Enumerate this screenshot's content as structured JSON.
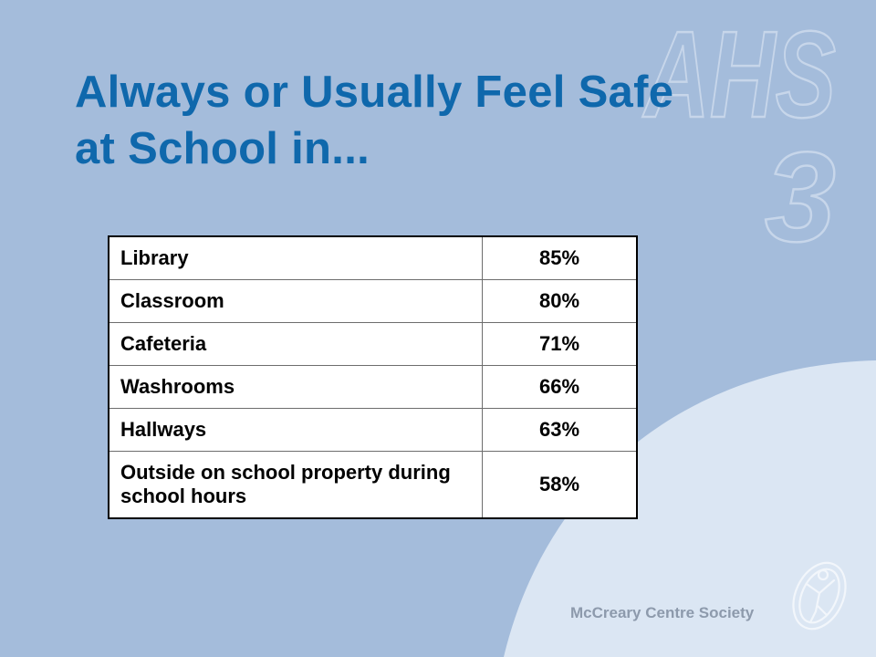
{
  "slide": {
    "title_line1": "Always or Usually Feel Safe",
    "title_line2": "at School in...",
    "watermark_text_1": "AHS",
    "watermark_text_2": "3",
    "footer": "McCreary Centre Society"
  },
  "table": {
    "rows": [
      {
        "label": "Library",
        "value": "85%"
      },
      {
        "label": "Classroom",
        "value": "80%"
      },
      {
        "label": "Cafeteria",
        "value": "71%"
      },
      {
        "label": "Washrooms",
        "value": "66%"
      },
      {
        "label": "Hallways",
        "value": "63%"
      },
      {
        "label": "Outside on school property during school hours",
        "value": "58%"
      }
    ]
  },
  "colors": {
    "background": "#a4bcdb",
    "title": "#0f68ac",
    "curve": "#dbe6f3",
    "footer": "#8d9aac"
  },
  "icons": {
    "logo": "person-figure-logo"
  }
}
